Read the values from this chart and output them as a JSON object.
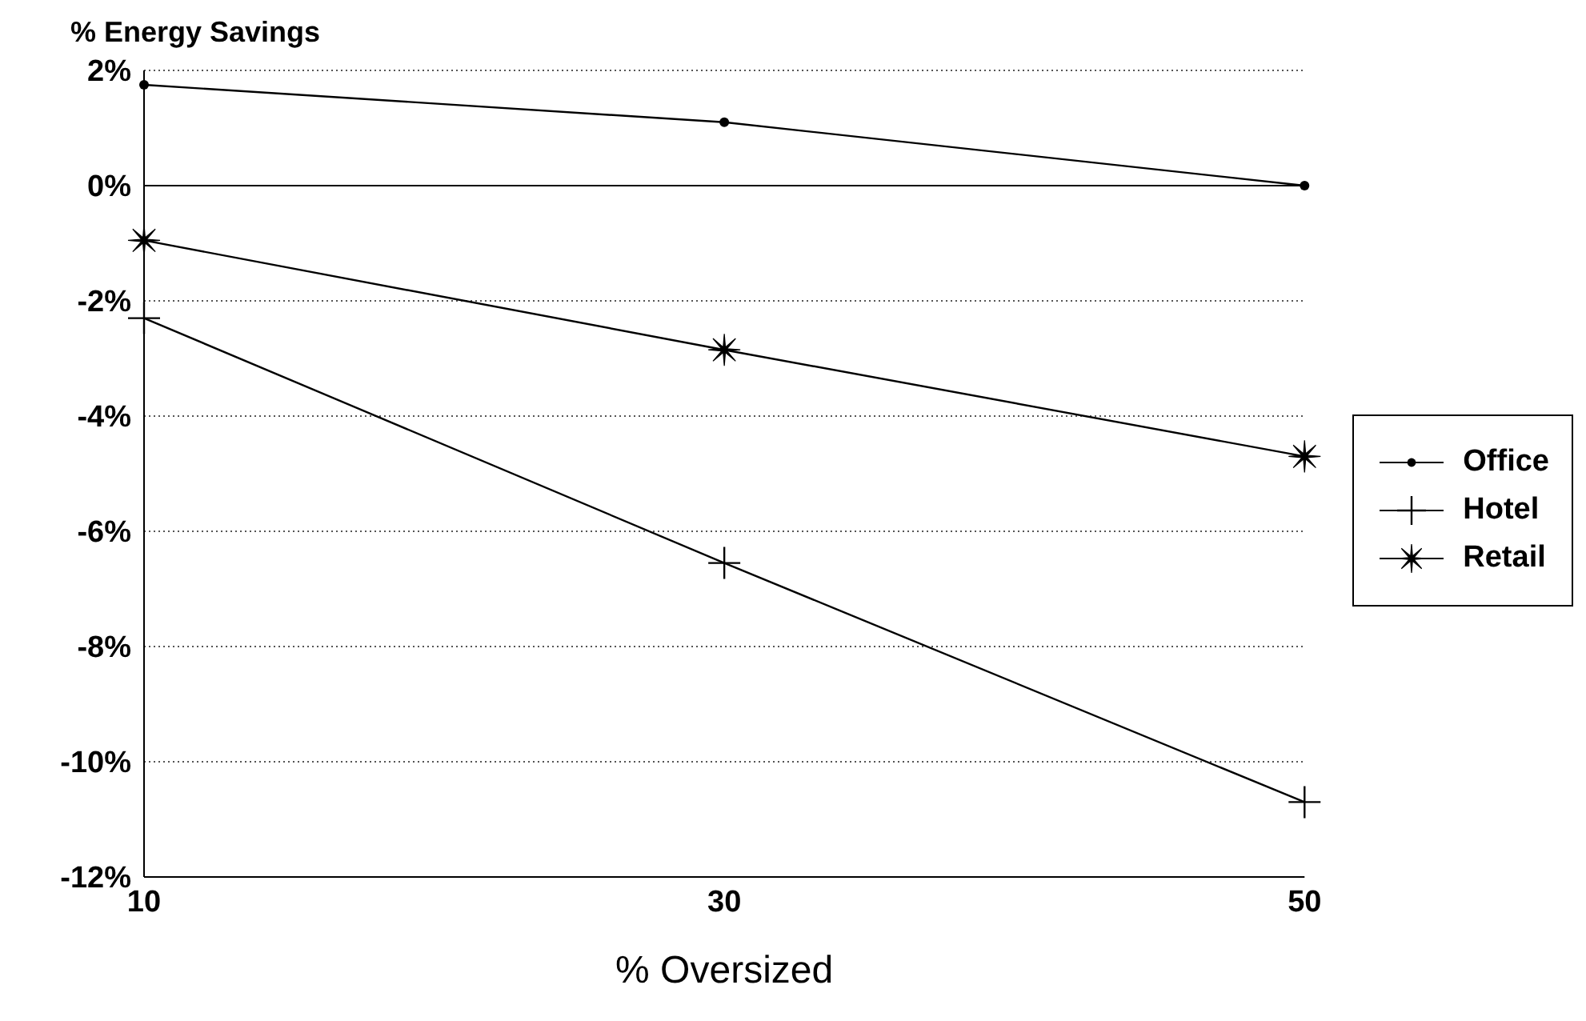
{
  "chart_data": {
    "type": "line",
    "ylabel": "% Energy Savings",
    "xlabel": "% Oversized",
    "x": [
      10,
      30,
      50
    ],
    "xlim": [
      10,
      50
    ],
    "xticks": [
      10,
      30,
      50
    ],
    "ylim": [
      -12,
      2
    ],
    "yticks": [
      {
        "value": 2,
        "label": "2%"
      },
      {
        "value": 0,
        "label": "0%"
      },
      {
        "value": -2,
        "label": "-2%"
      },
      {
        "value": -4,
        "label": "-4%"
      },
      {
        "value": -6,
        "label": "-6%"
      },
      {
        "value": -8,
        "label": "-8%"
      },
      {
        "value": -10,
        "label": "-10%"
      },
      {
        "value": -12,
        "label": "-12%"
      }
    ],
    "grid": "y",
    "legend": "right",
    "line_style": "solid",
    "series": [
      {
        "name": "Office",
        "color": "#000000",
        "marker": "circle",
        "values": [
          1.75,
          1.1,
          0
        ]
      },
      {
        "name": "Hotel",
        "color": "#000000",
        "marker": "cross",
        "values": [
          -2.3,
          -6.55,
          -10.7
        ]
      },
      {
        "name": "Retail",
        "color": "#000000",
        "marker": "star",
        "values": [
          -0.95,
          -2.85,
          -4.7
        ]
      }
    ]
  }
}
